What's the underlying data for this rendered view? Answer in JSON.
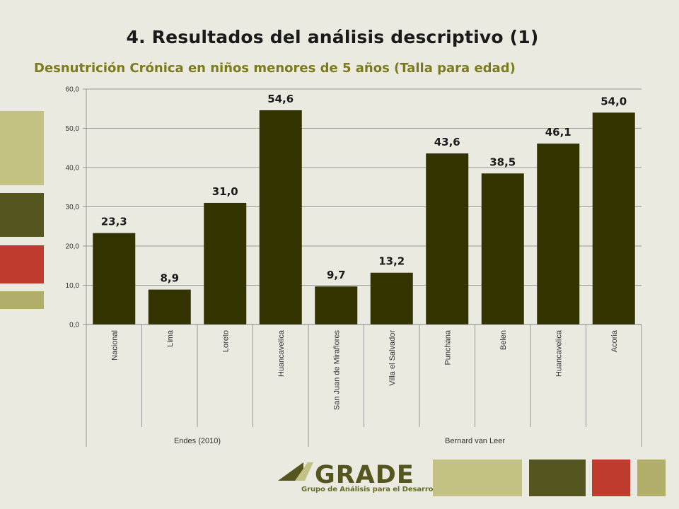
{
  "title": "4. Resultados del análisis descriptivo (1)",
  "subtitle": "Desnutrición Crónica en niños menores de 5 años (Talla para edad)",
  "colors": {
    "background": "#eaeae1",
    "bar": "#333300",
    "accent_light": "#c3c183",
    "accent_dark": "#55551f",
    "accent_red": "#bf3b2e",
    "accent_olive": "#b0ae68"
  },
  "chart_data": {
    "type": "bar",
    "categories": [
      "Nacional",
      "Lima",
      "Loreto",
      "Huancavelica",
      "San Juan de Miraflores",
      "Villa el Salvador",
      "Punchana",
      "Belen",
      "Huancavelica",
      "Acoria"
    ],
    "values": [
      23.3,
      8.9,
      31.0,
      54.6,
      9.7,
      13.2,
      43.6,
      38.5,
      46.1,
      54.0
    ],
    "data_labels": [
      "23,3",
      "8,9",
      "31,0",
      "54,6",
      "9,7",
      "13,2",
      "43,6",
      "38,5",
      "46,1",
      "54,0"
    ],
    "groups": [
      {
        "label": "Endes (2010)",
        "categories": [
          "Nacional",
          "Lima",
          "Loreto",
          "Huancavelica"
        ]
      },
      {
        "label": "Bernard van Leer",
        "categories": [
          "San Juan de Miraflores",
          "Villa el Salvador",
          "Punchana",
          "Belen",
          "Huancavelica",
          "Acoria"
        ]
      }
    ],
    "yticks": [
      "0,0",
      "10,0",
      "20,0",
      "30,0",
      "40,0",
      "50,0",
      "60,0"
    ],
    "ylim": [
      0,
      60
    ],
    "grid": true,
    "legend": "none"
  },
  "logo": {
    "name": "GRADE",
    "tagline": "Grupo de Análisis para el Desarrollo"
  }
}
